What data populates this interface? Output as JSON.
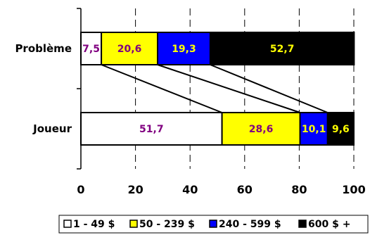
{
  "chart_data": {
    "type": "bar",
    "orientation": "horizontal",
    "stacked": true,
    "categories": [
      "Problème",
      "Joueur"
    ],
    "series": [
      {
        "name": "1 - 49 $",
        "values": [
          7.5,
          51.7
        ],
        "labels": [
          "7,5",
          "51,7"
        ],
        "color": "#ffffff",
        "label_color": "#800080"
      },
      {
        "name": "50 - 239 $",
        "values": [
          20.6,
          28.6
        ],
        "labels": [
          "20,6",
          "28,6"
        ],
        "color": "#ffff00",
        "label_color": "#800080"
      },
      {
        "name": "240 - 599 $",
        "values": [
          19.3,
          10.1
        ],
        "labels": [
          "19,3",
          "10,1"
        ],
        "color": "#0000ff",
        "label_color": "#ffff00"
      },
      {
        "name": "600 $ +",
        "values": [
          52.7,
          9.6
        ],
        "labels": [
          "52,7",
          "9,6"
        ],
        "color": "#000000",
        "label_color": "#ffff00"
      }
    ],
    "xlim": [
      0,
      100
    ],
    "xticks": [
      "0",
      "20",
      "40",
      "60",
      "80",
      "100"
    ],
    "grid": "vertical dashed",
    "series_connectors": true,
    "legend_position": "bottom"
  }
}
